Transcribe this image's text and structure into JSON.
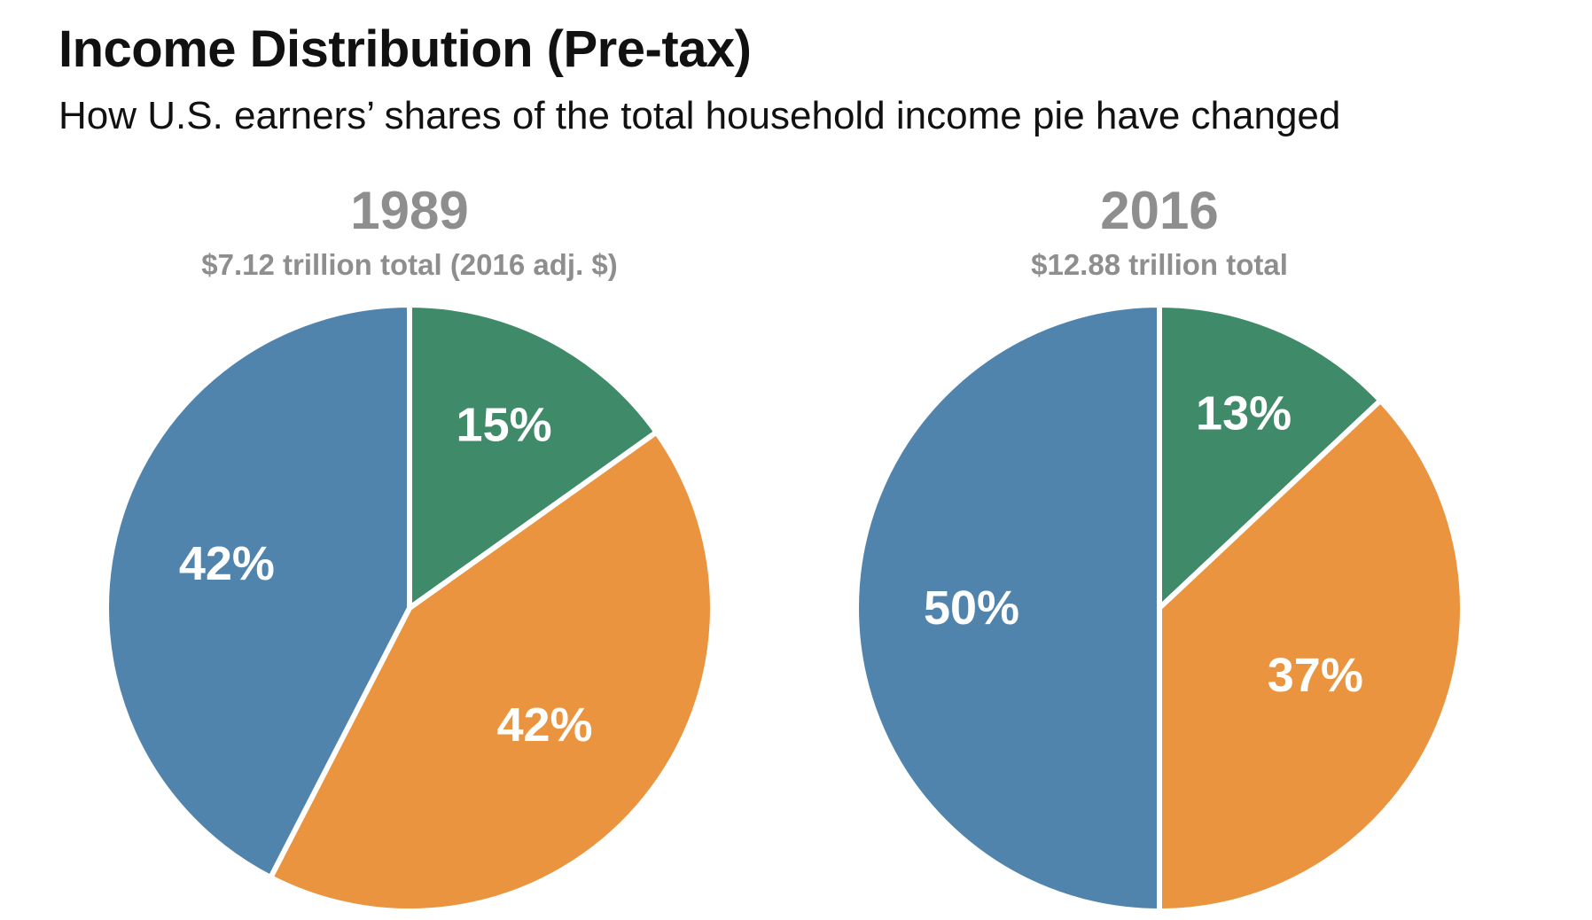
{
  "chart_data": {
    "type": "pie",
    "title": "Income Distribution (Pre-tax)",
    "subtitle": "How U.S. earners’ shares of the total household income pie have changed",
    "colors": {
      "slice_1": "#3f8a68",
      "slice_2": "#ea9440",
      "slice_3": "#5184ad",
      "header_text": "#8e8e8e",
      "slice_text": "#ffffff"
    },
    "pies": [
      {
        "year": "1989",
        "total": "$7.12 trillion total (2016 adj. $)",
        "slices": [
          {
            "value": 15,
            "label": "15%",
            "color": "#3f8a68"
          },
          {
            "value": 42,
            "label": "42%",
            "color": "#ea9440"
          },
          {
            "value": 42,
            "label": "42%",
            "color": "#5184ad"
          }
        ]
      },
      {
        "year": "2016",
        "total": "$12.88 trillion total",
        "slices": [
          {
            "value": 13,
            "label": "13%",
            "color": "#3f8a68"
          },
          {
            "value": 37,
            "label": "37%",
            "color": "#ea9440"
          },
          {
            "value": 50,
            "label": "50%",
            "color": "#5184ad"
          }
        ]
      }
    ]
  }
}
